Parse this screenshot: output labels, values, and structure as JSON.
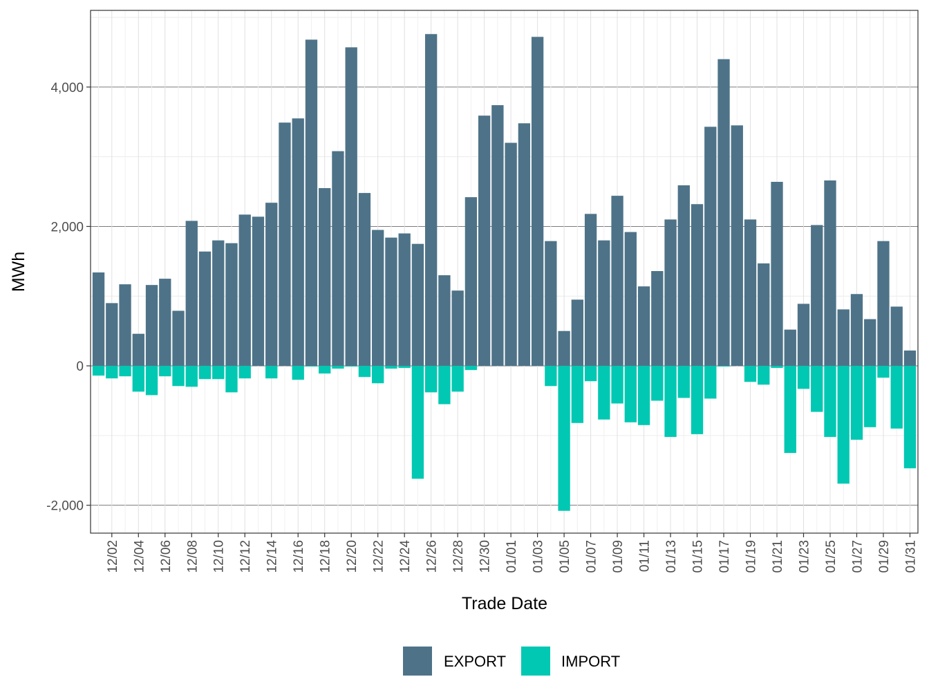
{
  "chart_data": {
    "type": "bar",
    "stacked": true,
    "xlabel": "Trade Date",
    "ylabel": "MWh",
    "ylim": [
      -2400,
      5100
    ],
    "yticks": [
      -2000,
      0,
      2000,
      4000
    ],
    "ytick_labels": [
      "-2,000",
      "0",
      "2,000",
      "4,000"
    ],
    "grid": true,
    "legend_position": "bottom",
    "categories": [
      "12/01",
      "12/02",
      "12/03",
      "12/04",
      "12/05",
      "12/06",
      "12/07",
      "12/08",
      "12/09",
      "12/10",
      "12/11",
      "12/12",
      "12/13",
      "12/14",
      "12/15",
      "12/16",
      "12/17",
      "12/18",
      "12/19",
      "12/20",
      "12/21",
      "12/22",
      "12/23",
      "12/24",
      "12/25",
      "12/26",
      "12/27",
      "12/28",
      "12/29",
      "12/30",
      "12/31",
      "01/01",
      "01/02",
      "01/03",
      "01/04",
      "01/05",
      "01/06",
      "01/07",
      "01/08",
      "01/09",
      "01/10",
      "01/11",
      "01/12",
      "01/13",
      "01/14",
      "01/15",
      "01/16",
      "01/17",
      "01/18",
      "01/19",
      "01/20",
      "01/21",
      "01/22",
      "01/23",
      "01/24",
      "01/25",
      "01/26",
      "01/27",
      "01/28",
      "01/29",
      "01/30",
      "01/31"
    ],
    "xtick_labels": [
      "12/02",
      "12/04",
      "12/06",
      "12/08",
      "12/10",
      "12/12",
      "12/14",
      "12/16",
      "12/18",
      "12/20",
      "12/22",
      "12/24",
      "12/26",
      "12/28",
      "12/30",
      "01/01",
      "01/03",
      "01/05",
      "01/07",
      "01/09",
      "01/11",
      "01/13",
      "01/15",
      "01/17",
      "01/19",
      "01/21",
      "01/23",
      "01/25",
      "01/27",
      "01/29",
      "01/31"
    ],
    "series": [
      {
        "name": "EXPORT",
        "color": "#4e7388",
        "values": [
          1340,
          900,
          1170,
          460,
          1160,
          1250,
          790,
          2080,
          1640,
          1800,
          1760,
          2170,
          2140,
          2340,
          3490,
          3550,
          4680,
          2550,
          3080,
          4570,
          2480,
          1950,
          1840,
          1900,
          1750,
          4760,
          1300,
          1080,
          2420,
          3590,
          3740,
          3200,
          3480,
          4720,
          1790,
          500,
          950,
          2180,
          1800,
          2440,
          1920,
          1140,
          1360,
          2100,
          2590,
          2320,
          3430,
          4400,
          3450,
          2100,
          1470,
          2640,
          520,
          890,
          2020,
          2660,
          810,
          1030,
          670,
          1790,
          850,
          220
        ]
      },
      {
        "name": "IMPORT",
        "color": "#00c8b2",
        "values": [
          -140,
          -180,
          -150,
          -370,
          -420,
          -150,
          -290,
          -300,
          -190,
          -190,
          -380,
          -180,
          0,
          -180,
          0,
          -200,
          -10,
          -110,
          -40,
          -10,
          -160,
          -250,
          -40,
          -30,
          -1620,
          -380,
          -550,
          -370,
          -60,
          0,
          0,
          0,
          0,
          0,
          -290,
          -2080,
          -820,
          -220,
          -770,
          -540,
          -810,
          -850,
          -500,
          -1020,
          -460,
          -980,
          -470,
          -10,
          0,
          -230,
          -270,
          -30,
          -1250,
          -330,
          -660,
          -1020,
          -1690,
          -1060,
          -880,
          -170,
          -900,
          -1470
        ]
      }
    ]
  },
  "legend": {
    "items": [
      {
        "label": "EXPORT",
        "color": "#4e7388"
      },
      {
        "label": "IMPORT",
        "color": "#00c8b2"
      }
    ]
  }
}
